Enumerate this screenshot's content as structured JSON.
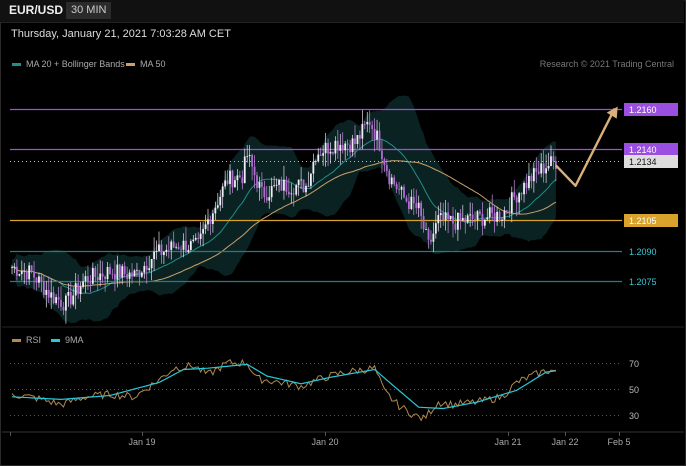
{
  "header": {
    "symbol": "EUR/USD",
    "timeframe": "30 MIN"
  },
  "date_text": "Thursday, January 21, 2021 7:03:28 AM CET",
  "legend": {
    "ma20": {
      "label": "MA 20 + Bollinger Bands",
      "color": "#1e8f8a"
    },
    "ma50": {
      "label": "MA 50",
      "color": "#c9a16a"
    },
    "rsi": {
      "label": "RSI",
      "color": "#b08a50"
    },
    "ma9": {
      "label": "9MA",
      "color": "#28c8d8"
    }
  },
  "copyright": "Research © 2021 Trading Central",
  "chart_data": [
    {
      "type": "candlestick",
      "title": "",
      "ylim": [
        1.2053,
        1.2178
      ],
      "levels": [
        {
          "value": 1.216,
          "label": "1.2160",
          "color": "#9b4fe0",
          "style": "solid",
          "label_box": true
        },
        {
          "value": 1.214,
          "label": "1.2140",
          "color": "#9b4fe0",
          "style": "solid",
          "label_box": true
        },
        {
          "value": 1.2134,
          "label": "1.2134",
          "color": "#bbbbbb",
          "style": "dotted",
          "label_box": true,
          "box_color": "#dddddd"
        },
        {
          "value": 1.2105,
          "label": "1.2105",
          "color": "#d9a22a",
          "style": "solid",
          "label_box": true
        },
        {
          "value": 1.209,
          "label": "1.2090",
          "color": "#1d7f86",
          "style": "solid",
          "label_box": false
        },
        {
          "value": 1.2075,
          "label": "1.2075",
          "color": "#1d7f86",
          "style": "solid",
          "label_box": false
        }
      ],
      "anchors": [
        [
          0,
          1.2082
        ],
        [
          8,
          1.2079
        ],
        [
          16,
          1.2068
        ],
        [
          22,
          1.2064
        ],
        [
          30,
          1.2076
        ],
        [
          40,
          1.208
        ],
        [
          50,
          1.2078
        ],
        [
          58,
          1.2088
        ],
        [
          68,
          1.2093
        ],
        [
          76,
          1.2092
        ],
        [
          80,
          1.2105
        ],
        [
          88,
          1.2125
        ],
        [
          94,
          1.2127
        ],
        [
          96,
          1.2137
        ],
        [
          102,
          1.2118
        ],
        [
          110,
          1.2122
        ],
        [
          120,
          1.2122
        ],
        [
          124,
          1.2138
        ],
        [
          132,
          1.2143
        ],
        [
          140,
          1.2143
        ],
        [
          146,
          1.2154
        ],
        [
          150,
          1.2143
        ],
        [
          154,
          1.2127
        ],
        [
          160,
          1.2116
        ],
        [
          166,
          1.211
        ],
        [
          170,
          1.2092
        ],
        [
          174,
          1.2105
        ],
        [
          180,
          1.2104
        ],
        [
          190,
          1.2106
        ],
        [
          200,
          1.2108
        ],
        [
          206,
          1.2118
        ],
        [
          212,
          1.2126
        ],
        [
          218,
          1.2132
        ],
        [
          222,
          1.2134
        ]
      ],
      "projection": [
        [
          222,
          1.2132
        ],
        [
          230,
          1.2122
        ],
        [
          246,
          1.216
        ]
      ],
      "x_ticks": [
        "Jan 19",
        "Jan 20",
        "Jan 21",
        "Jan 22",
        "Feb 5"
      ]
    },
    {
      "type": "line",
      "title": "",
      "ylim": [
        20,
        80
      ],
      "ticks": [
        70,
        50,
        30
      ],
      "tick_labels": [
        "70",
        "50",
        "30"
      ],
      "rsi_anchors": [
        [
          0,
          46
        ],
        [
          10,
          43
        ],
        [
          20,
          38
        ],
        [
          30,
          44
        ],
        [
          40,
          46
        ],
        [
          50,
          44
        ],
        [
          60,
          57
        ],
        [
          66,
          66
        ],
        [
          74,
          68
        ],
        [
          80,
          61
        ],
        [
          88,
          70
        ],
        [
          96,
          70
        ],
        [
          100,
          58
        ],
        [
          110,
          55
        ],
        [
          118,
          52
        ],
        [
          126,
          58
        ],
        [
          134,
          62
        ],
        [
          140,
          64
        ],
        [
          148,
          66
        ],
        [
          152,
          48
        ],
        [
          158,
          37
        ],
        [
          164,
          30
        ],
        [
          168,
          27
        ],
        [
          174,
          40
        ],
        [
          180,
          38
        ],
        [
          190,
          40
        ],
        [
          200,
          44
        ],
        [
          206,
          55
        ],
        [
          212,
          60
        ],
        [
          218,
          64
        ],
        [
          222,
          64
        ]
      ],
      "ma9_anchors": [
        [
          0,
          44
        ],
        [
          20,
          42
        ],
        [
          40,
          45
        ],
        [
          60,
          55
        ],
        [
          70,
          65
        ],
        [
          80,
          66
        ],
        [
          96,
          69
        ],
        [
          104,
          60
        ],
        [
          118,
          54
        ],
        [
          130,
          59
        ],
        [
          148,
          65
        ],
        [
          156,
          52
        ],
        [
          166,
          36
        ],
        [
          176,
          35
        ],
        [
          190,
          40
        ],
        [
          206,
          49
        ],
        [
          218,
          63
        ],
        [
          222,
          64
        ]
      ]
    }
  ]
}
